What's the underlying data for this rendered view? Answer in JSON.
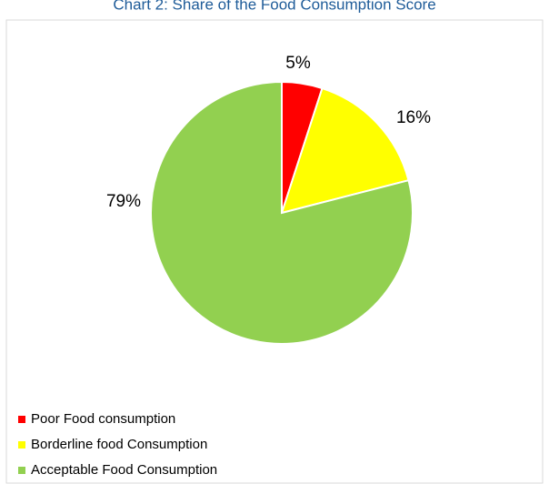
{
  "chart_data": {
    "type": "pie",
    "title": "Chart 2: Share of the Food Consumption Score",
    "categories": [
      "Poor Food consumption",
      "Borderline food Consumption",
      "Acceptable Food Consumption"
    ],
    "values": [
      5,
      16,
      79
    ],
    "value_labels": [
      "5%",
      "16%",
      "79%"
    ],
    "colors": [
      "#ff0000",
      "#ffff00",
      "#92d050"
    ],
    "legend": "bottom-left"
  }
}
